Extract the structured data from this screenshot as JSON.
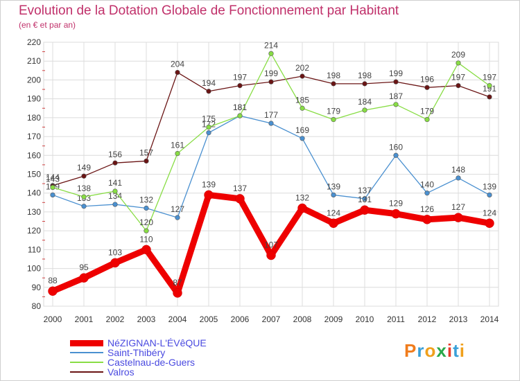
{
  "title": "Evolution de la Dotation Globale de Fonctionnement par Habitant",
  "subtitle": "(en € et par an)",
  "logo": {
    "text": "Proxiti",
    "colors": [
      "#f07c1c",
      "#3aa0d8",
      "#f0a01c",
      "#2aa84a",
      "#e83a2a",
      "#3aa0d8",
      "#f0a01c"
    ]
  },
  "chart_data": {
    "type": "line",
    "x": [
      "2000",
      "2001",
      "2002",
      "2003",
      "2004",
      "2005",
      "2006",
      "2007",
      "2008",
      "2009",
      "2010",
      "2011",
      "2012",
      "2013",
      "2014"
    ],
    "ylim": [
      80,
      220
    ],
    "yticks": [
      80,
      90,
      100,
      110,
      120,
      130,
      140,
      150,
      160,
      170,
      180,
      190,
      200,
      210,
      220
    ],
    "grid": true,
    "legend_position": "bottom-left",
    "series": [
      {
        "name": "NéZIGNAN-L'ÉVêQUE",
        "color": "#ee0000",
        "values": [
          88,
          95,
          103,
          110,
          87,
          139,
          137,
          107,
          132,
          124,
          131,
          129,
          126,
          127,
          124
        ],
        "labels": [
          "88",
          "95",
          "103",
          "110",
          "87",
          "139",
          "137",
          "107",
          "132",
          "124",
          "131",
          "129",
          "126",
          "127",
          "124"
        ]
      },
      {
        "name": "Saint-Thibéry",
        "color": "#4a90d0",
        "values": [
          139,
          133,
          134,
          132,
          127,
          172,
          181,
          177,
          169,
          139,
          137,
          160,
          140,
          148,
          139
        ],
        "labels": [
          "139",
          "133",
          "134",
          "132",
          "127",
          "172",
          "181",
          "177",
          "169",
          "139",
          "137",
          "160",
          "140",
          "148",
          "139"
        ]
      },
      {
        "name": "Castelnau-de-Guers",
        "color": "#88dd44",
        "values": [
          143,
          138,
          141,
          120,
          161,
          175,
          181,
          214,
          185,
          179,
          184,
          187,
          179,
          209,
          197
        ],
        "labels": [
          "143",
          "138",
          "141",
          "120",
          "161",
          "175",
          "181",
          "214",
          "185",
          "179",
          "184",
          "187",
          "179",
          "209",
          "197"
        ]
      },
      {
        "name": "Valros",
        "color": "#6a1414",
        "values": [
          144,
          149,
          156,
          157,
          204,
          194,
          197,
          199,
          202,
          198,
          198,
          199,
          196,
          197,
          191
        ],
        "labels": [
          "144",
          "149",
          "156",
          "157",
          "204",
          "194",
          "197",
          "199",
          "202",
          "198",
          "198",
          "199",
          "196",
          "197",
          "191"
        ]
      }
    ]
  }
}
